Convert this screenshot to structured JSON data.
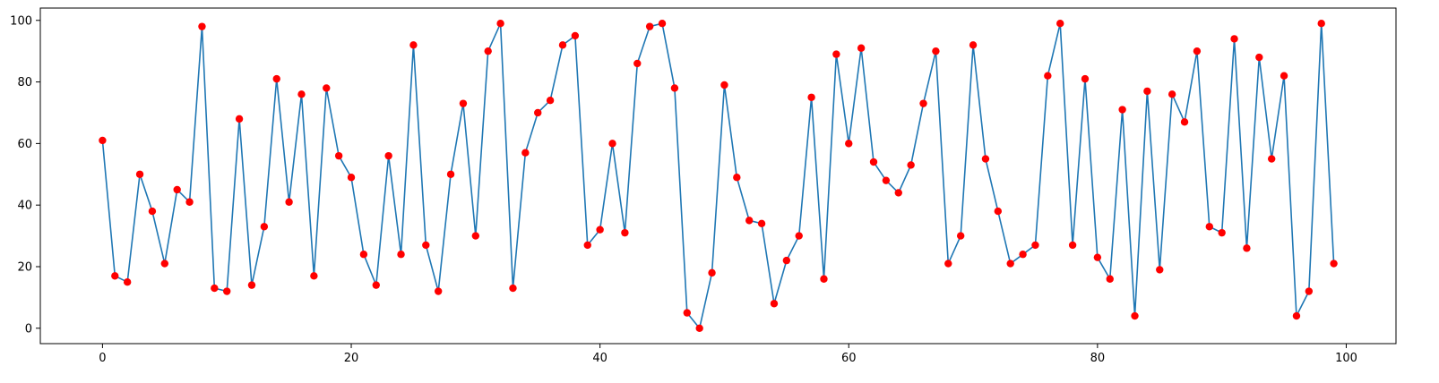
{
  "chart_data": {
    "type": "line",
    "title": "",
    "xlabel": "",
    "ylabel": "",
    "xlim": [
      -5,
      104
    ],
    "ylim": [
      -5,
      104
    ],
    "xticks": [
      0,
      20,
      40,
      60,
      80,
      100
    ],
    "yticks": [
      0,
      20,
      40,
      60,
      80,
      100
    ],
    "grid": false,
    "legend": "none",
    "line_color": "#1f77b4",
    "marker_color": "#ff0000",
    "x": [
      0,
      1,
      2,
      3,
      4,
      5,
      6,
      7,
      8,
      9,
      10,
      11,
      12,
      13,
      14,
      15,
      16,
      17,
      18,
      19,
      20,
      21,
      22,
      23,
      24,
      25,
      26,
      27,
      28,
      29,
      30,
      31,
      32,
      33,
      34,
      35,
      36,
      37,
      38,
      39,
      40,
      41,
      42,
      43,
      44,
      45,
      46,
      47,
      48,
      49,
      50,
      51,
      52,
      53,
      54,
      55,
      56,
      57,
      58,
      59,
      60,
      61,
      62,
      63,
      64,
      65,
      66,
      67,
      68,
      69,
      70,
      71,
      72,
      73,
      74,
      75,
      76,
      77,
      78,
      79,
      80,
      81,
      82,
      83,
      84,
      85,
      86,
      87,
      88,
      89,
      90,
      91,
      92,
      93,
      94,
      95,
      96,
      97,
      98,
      99
    ],
    "y": [
      61,
      17,
      15,
      50,
      38,
      21,
      45,
      41,
      98,
      13,
      12,
      68,
      14,
      33,
      81,
      41,
      76,
      17,
      78,
      56,
      49,
      24,
      14,
      56,
      24,
      92,
      27,
      12,
      50,
      73,
      30,
      90,
      99,
      13,
      57,
      70,
      74,
      92,
      95,
      27,
      32,
      60,
      31,
      86,
      98,
      99,
      78,
      5,
      0,
      18,
      79,
      49,
      35,
      34,
      8,
      22,
      30,
      75,
      16,
      89,
      60,
      91,
      54,
      48,
      44,
      53,
      73,
      90,
      21,
      30,
      92,
      55,
      38,
      21,
      24,
      27,
      82,
      99,
      27,
      81,
      23,
      16,
      71,
      4,
      77,
      19,
      76,
      67,
      90,
      33,
      31,
      94,
      26,
      88,
      55,
      82,
      4,
      12,
      99,
      21
    ]
  }
}
